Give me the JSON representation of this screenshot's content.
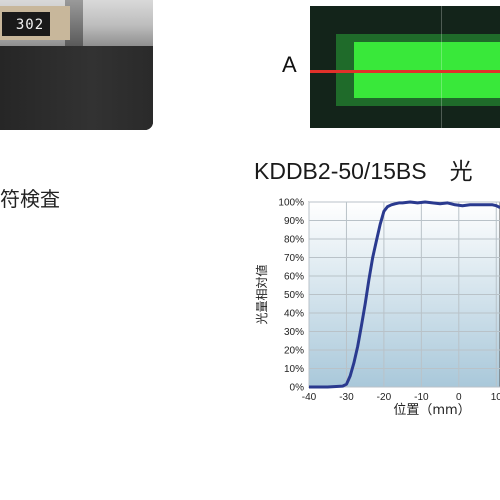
{
  "left_photo": {
    "chip_code": "302"
  },
  "left_caption": "符検査",
  "right_photo": {
    "position_label": "A"
  },
  "colors": {
    "curve": "#2a3a8f",
    "fill_top": "#ffffff",
    "fill_bottom": "#a9c8da",
    "laser": "#e0312a",
    "glow": "#39e83a"
  },
  "chart_data": {
    "type": "line",
    "title": "KDDB2-50/15BS　光",
    "xlabel": "位置（mm）",
    "ylabel": "光量相対値",
    "x_ticks": [
      "-40",
      "-30",
      "-20",
      "-10",
      "0",
      "10"
    ],
    "y_ticks": [
      "0%",
      "10%",
      "20%",
      "30%",
      "40%",
      "50%",
      "60%",
      "70%",
      "80%",
      "90%",
      "100%"
    ],
    "xlim": [
      -40,
      11
    ],
    "ylim": [
      0,
      100
    ],
    "grid": true,
    "series": [
      {
        "x": [
          -40,
          -35,
          -31,
          -30,
          -29,
          -28,
          -27,
          -26,
          -25,
          -24,
          -23,
          -22,
          -21,
          -20,
          -19,
          -18,
          -17,
          -16,
          -15,
          -13,
          -11,
          -9,
          -7,
          -5,
          -3,
          -1,
          1,
          3,
          5,
          7,
          9,
          10,
          11
        ],
        "y": [
          0,
          0,
          0.5,
          1.5,
          6,
          13,
          22,
          33,
          45,
          58,
          70,
          79,
          88,
          95,
          97.5,
          98.5,
          99,
          99.5,
          99.5,
          100,
          99.5,
          100,
          99.5,
          99,
          99.5,
          98.5,
          98,
          98.5,
          98.5,
          98.5,
          98.5,
          98,
          97
        ]
      }
    ]
  }
}
